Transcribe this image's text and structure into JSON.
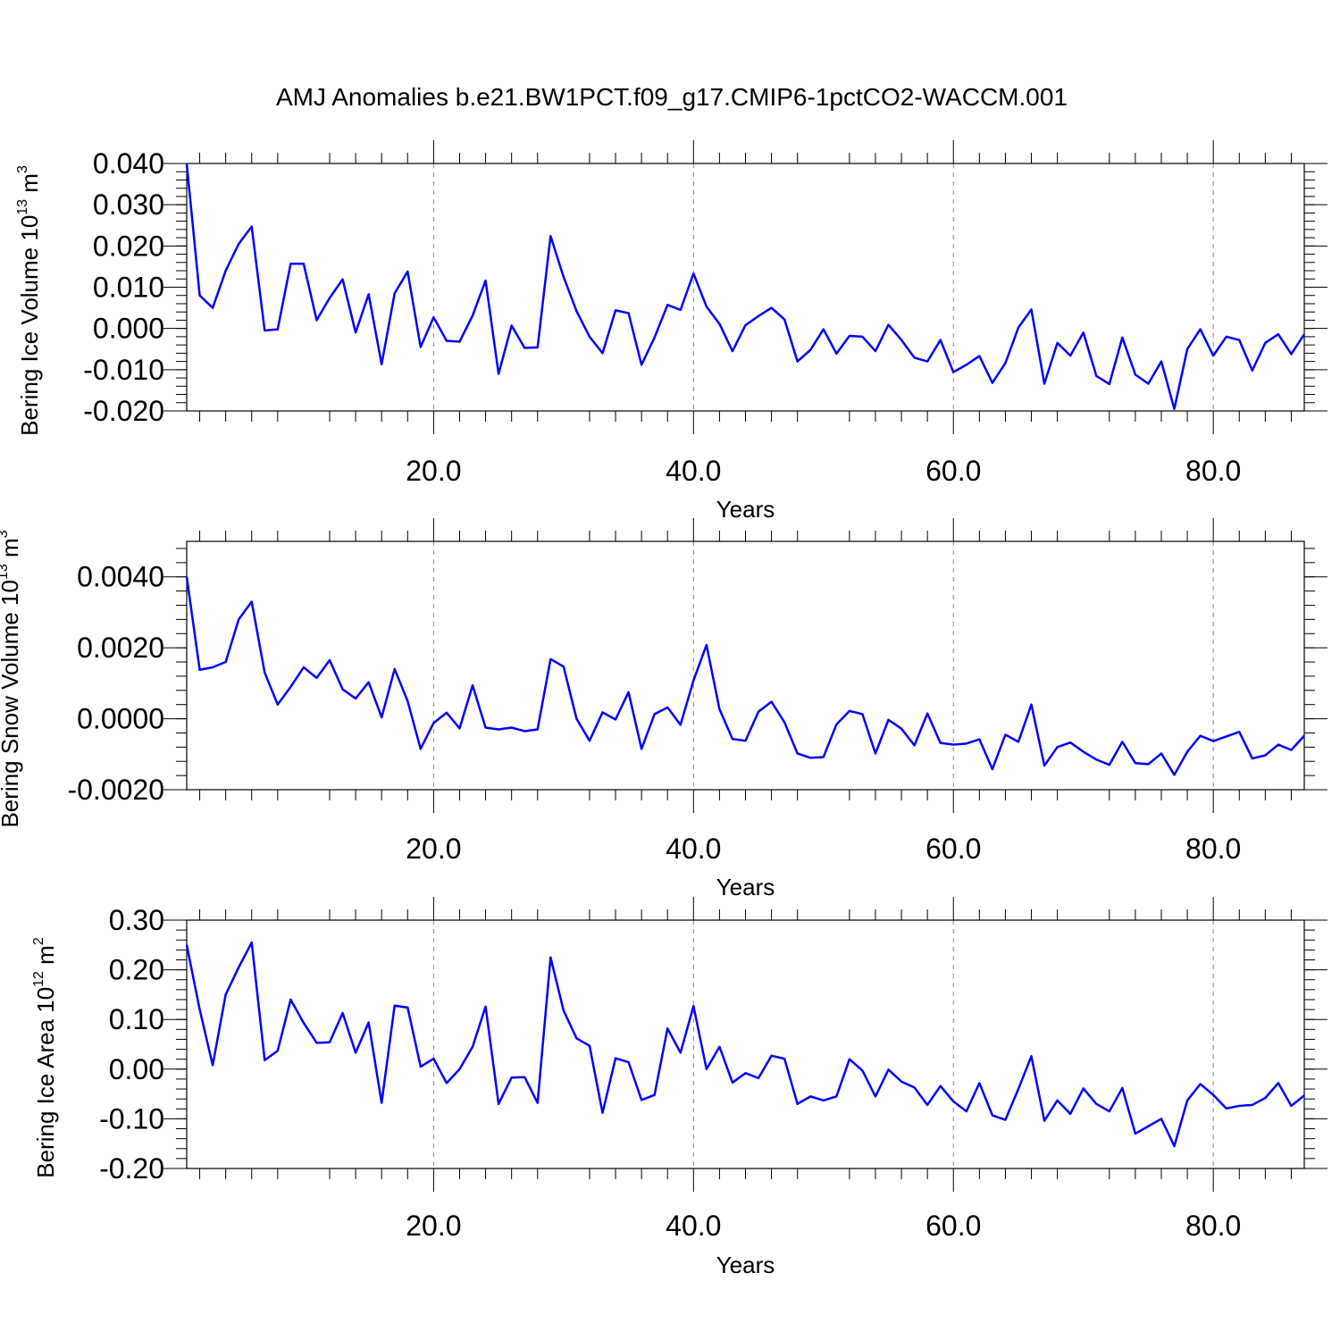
{
  "chart_data": {
    "title": "AMJ Anomalies b.e21.BW1PCT.f09_g17.CMIP6-1pctCO2-WACCM.001",
    "line_color": "#0000ff",
    "panels": [
      {
        "type": "line",
        "ylabel": "Bering Ice Volume 10",
        "ylabel_exp": "13",
        "ylabel_unit": " m",
        "ylabel_unit_exp": "3",
        "xlabel": "Years",
        "xlim": [
          1,
          87
        ],
        "ylim": [
          -0.02,
          0.04
        ],
        "y_ticks": [
          0.04,
          0.03,
          0.02,
          0.01,
          0.0,
          -0.01,
          -0.02
        ],
        "y_tick_labels": [
          "0.040",
          "0.030",
          "0.020",
          "0.010",
          "0.000",
          "-0.010",
          "-0.020"
        ],
        "x_ticks": [
          20,
          40,
          60,
          80
        ],
        "x_tick_labels": [
          "20.0",
          "40.0",
          "60.0",
          "80.0"
        ],
        "x": [
          1,
          2,
          3,
          4,
          5,
          6,
          7,
          8,
          9,
          10,
          11,
          12,
          13,
          14,
          15,
          16,
          17,
          18,
          19,
          20,
          21,
          22,
          23,
          24,
          25,
          26,
          27,
          28,
          29,
          30,
          31,
          32,
          33,
          34,
          35,
          36,
          37,
          38,
          39,
          40,
          41,
          42,
          43,
          44,
          45,
          46,
          47,
          48,
          49,
          50,
          51,
          52,
          53,
          54,
          55,
          56,
          57,
          58,
          59,
          60,
          61,
          62,
          63,
          64,
          65,
          66,
          67,
          68,
          69,
          70,
          71,
          72,
          73,
          74,
          75,
          76,
          77,
          78,
          79,
          80,
          81,
          82,
          83,
          84,
          85,
          86,
          87
        ],
        "values": [
          0.04,
          0.008,
          0.005,
          0.014,
          0.0205,
          0.0247,
          -0.0005,
          -0.0002,
          0.0157,
          0.0157,
          0.002,
          0.0074,
          0.0119,
          -0.001,
          0.0083,
          -0.0087,
          0.0085,
          0.0138,
          -0.0045,
          0.0027,
          -0.003,
          -0.0032,
          0.0031,
          0.0116,
          -0.011,
          0.0007,
          -0.0047,
          -0.0046,
          0.0224,
          0.0125,
          0.0042,
          -0.002,
          -0.006,
          0.0044,
          0.0037,
          -0.0088,
          -0.0022,
          0.0057,
          0.0045,
          0.0133,
          0.0053,
          0.0011,
          -0.0055,
          0.0008,
          0.003,
          0.005,
          0.0022,
          -0.008,
          -0.0052,
          -0.0002,
          -0.0061,
          -0.0018,
          -0.002,
          -0.0055,
          0.0009,
          -0.0028,
          -0.0071,
          -0.008,
          -0.0028,
          -0.0106,
          -0.0088,
          -0.0067,
          -0.0132,
          -0.0084,
          0.0002,
          0.0046,
          -0.0134,
          -0.0035,
          -0.0066,
          -0.001,
          -0.0115,
          -0.0135,
          -0.0022,
          -0.0112,
          -0.0134,
          -0.008,
          -0.0195,
          -0.005,
          -0.0002,
          -0.0066,
          -0.002,
          -0.0028,
          -0.0102,
          -0.0035,
          -0.0014,
          -0.0062,
          -0.0014
        ]
      },
      {
        "type": "line",
        "ylabel": "Bering Snow Volume 10",
        "ylabel_exp": "13",
        "ylabel_unit": " m",
        "ylabel_unit_exp": "3",
        "xlabel": "Years",
        "xlim": [
          1,
          87
        ],
        "ylim": [
          -0.002,
          0.005
        ],
        "y_ticks": [
          0.004,
          0.002,
          0.0,
          -0.002
        ],
        "y_tick_labels": [
          "0.0040",
          "0.0020",
          "0.0000",
          "-0.0020"
        ],
        "x_ticks": [
          20,
          40,
          60,
          80
        ],
        "x_tick_labels": [
          "20.0",
          "40.0",
          "60.0",
          "80.0"
        ],
        "x": [
          1,
          2,
          3,
          4,
          5,
          6,
          7,
          8,
          9,
          10,
          11,
          12,
          13,
          14,
          15,
          16,
          17,
          18,
          19,
          20,
          21,
          22,
          23,
          24,
          25,
          26,
          27,
          28,
          29,
          30,
          31,
          32,
          33,
          34,
          35,
          36,
          37,
          38,
          39,
          40,
          41,
          42,
          43,
          44,
          45,
          46,
          47,
          48,
          49,
          50,
          51,
          52,
          53,
          54,
          55,
          56,
          57,
          58,
          59,
          60,
          61,
          62,
          63,
          64,
          65,
          66,
          67,
          68,
          69,
          70,
          71,
          72,
          73,
          74,
          75,
          76,
          77,
          78,
          79,
          80,
          81,
          82,
          83,
          84,
          85,
          86,
          87
        ],
        "values": [
          0.004,
          0.00138,
          0.00145,
          0.0016,
          0.0028,
          0.0033,
          0.0013,
          0.0004,
          0.0009,
          0.00145,
          0.00115,
          0.00165,
          0.00083,
          0.00057,
          0.00103,
          4e-05,
          0.0014,
          0.0005,
          -0.00085,
          -0.00012,
          0.00017,
          -0.00027,
          0.00094,
          -0.00025,
          -0.0003,
          -0.00025,
          -0.00035,
          -0.0003,
          0.00168,
          0.00147,
          0.0,
          -0.00062,
          0.00018,
          -2e-05,
          0.00075,
          -0.00085,
          0.00013,
          0.00032,
          -0.00017,
          0.00108,
          0.00208,
          0.00027,
          -0.00057,
          -0.00062,
          0.0002,
          0.00048,
          -0.0001,
          -0.00098,
          -0.0011,
          -0.00108,
          -0.00016,
          0.00022,
          0.00013,
          -0.00098,
          -3e-05,
          -0.00028,
          -0.00075,
          0.00015,
          -0.00068,
          -0.00073,
          -0.0007,
          -0.00058,
          -0.00142,
          -0.00045,
          -0.00065,
          0.0004,
          -0.00132,
          -0.0008,
          -0.00067,
          -0.00093,
          -0.00115,
          -0.0013,
          -0.00065,
          -0.00125,
          -0.00128,
          -0.00098,
          -0.00158,
          -0.00093,
          -0.00048,
          -0.00063,
          -0.0005,
          -0.00037,
          -0.00112,
          -0.00103,
          -0.00073,
          -0.00088,
          -0.00048
        ]
      },
      {
        "type": "line",
        "ylabel": "Bering Ice Area 10",
        "ylabel_exp": "12",
        "ylabel_unit": " m",
        "ylabel_unit_exp": "2",
        "xlabel": "Years",
        "xlim": [
          1,
          87
        ],
        "ylim": [
          -0.2,
          0.3
        ],
        "y_ticks": [
          0.3,
          0.2,
          0.1,
          0.0,
          -0.1,
          -0.2
        ],
        "y_tick_labels": [
          "0.30",
          "0.20",
          "0.10",
          "0.00",
          "-0.10",
          "-0.20"
        ],
        "x_ticks": [
          20,
          40,
          60,
          80
        ],
        "x_tick_labels": [
          "20.0",
          "40.0",
          "60.0",
          "80.0"
        ],
        "x": [
          1,
          2,
          3,
          4,
          5,
          6,
          7,
          8,
          9,
          10,
          11,
          12,
          13,
          14,
          15,
          16,
          17,
          18,
          19,
          20,
          21,
          22,
          23,
          24,
          25,
          26,
          27,
          28,
          29,
          30,
          31,
          32,
          33,
          34,
          35,
          36,
          37,
          38,
          39,
          40,
          41,
          42,
          43,
          44,
          45,
          46,
          47,
          48,
          49,
          50,
          51,
          52,
          53,
          54,
          55,
          56,
          57,
          58,
          59,
          60,
          61,
          62,
          63,
          64,
          65,
          66,
          67,
          68,
          69,
          70,
          71,
          72,
          73,
          74,
          75,
          76,
          77,
          78,
          79,
          80,
          81,
          82,
          83,
          84,
          85,
          86,
          87
        ],
        "values": [
          0.25,
          0.12,
          0.008,
          0.15,
          0.205,
          0.255,
          0.018,
          0.037,
          0.14,
          0.093,
          0.053,
          0.054,
          0.113,
          0.033,
          0.094,
          -0.068,
          0.128,
          0.124,
          0.005,
          0.021,
          -0.028,
          0.0,
          0.045,
          0.126,
          -0.07,
          -0.017,
          -0.016,
          -0.068,
          0.225,
          0.118,
          0.062,
          0.047,
          -0.088,
          0.022,
          0.014,
          -0.062,
          -0.052,
          0.082,
          0.033,
          0.127,
          0.0,
          0.045,
          -0.027,
          -0.008,
          -0.018,
          0.027,
          0.021,
          -0.07,
          -0.055,
          -0.063,
          -0.055,
          0.02,
          -0.003,
          -0.055,
          -0.001,
          -0.025,
          -0.037,
          -0.072,
          -0.034,
          -0.065,
          -0.085,
          -0.028,
          -0.093,
          -0.102,
          -0.04,
          0.026,
          -0.104,
          -0.063,
          -0.09,
          -0.039,
          -0.07,
          -0.085,
          -0.038,
          -0.13,
          -0.115,
          -0.1,
          -0.155,
          -0.063,
          -0.03,
          -0.052,
          -0.079,
          -0.074,
          -0.072,
          -0.058,
          -0.028,
          -0.074,
          -0.053
        ]
      }
    ]
  }
}
